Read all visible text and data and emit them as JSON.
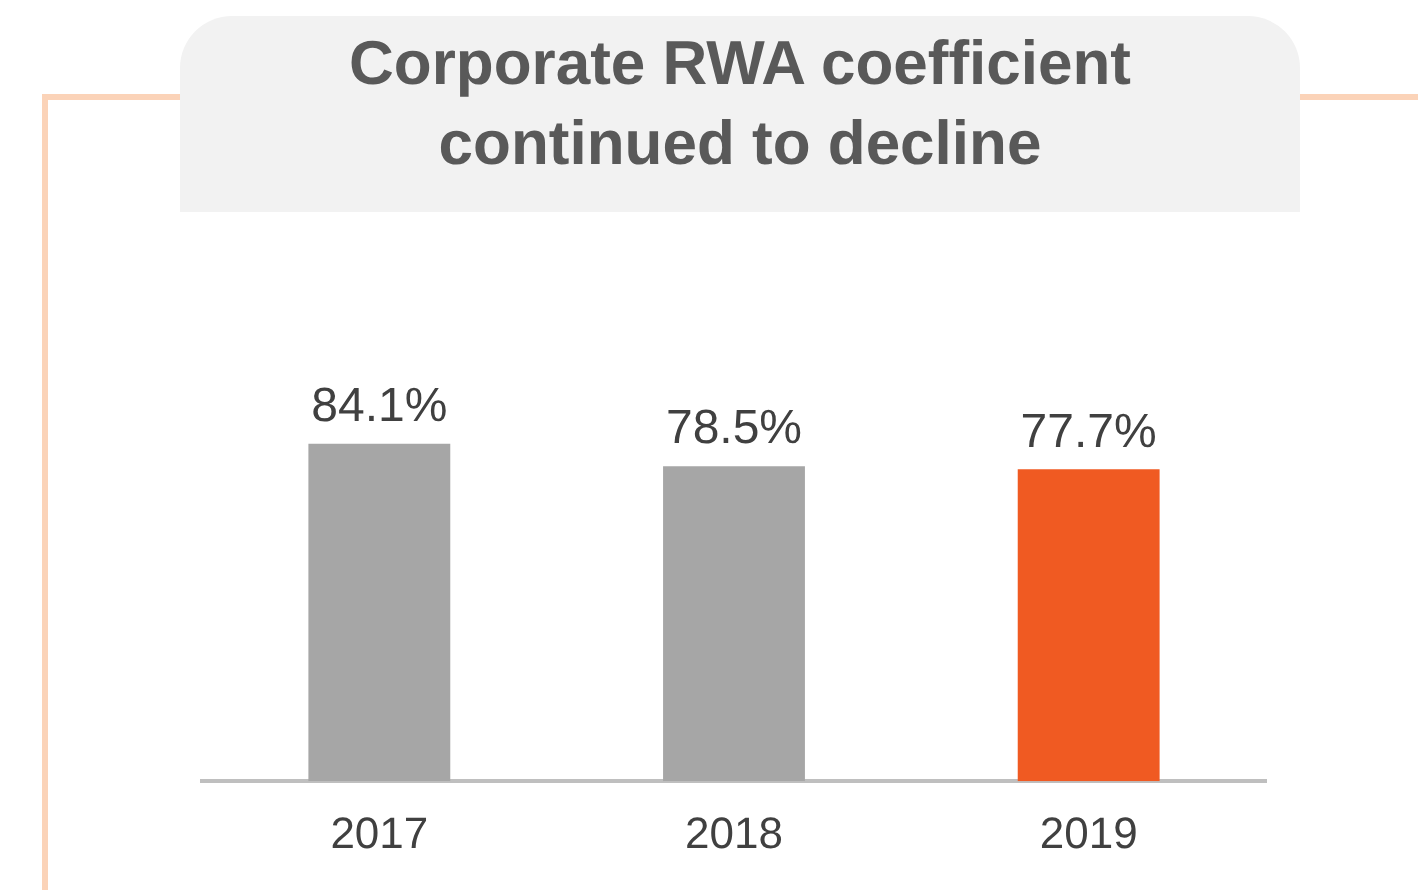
{
  "chart_data": {
    "type": "bar",
    "title": "Corporate RWA coefficient continued to decline",
    "categories": [
      "2017",
      "2018",
      "2019"
    ],
    "values": [
      84.1,
      78.5,
      77.7
    ],
    "colors": [
      "#a6a6a6",
      "#a6a6a6",
      "#f05a22"
    ],
    "value_labels": [
      "84.1%",
      "78.5%",
      "77.7%"
    ],
    "tick_labels": "x",
    "grid": false,
    "legend": false
  }
}
